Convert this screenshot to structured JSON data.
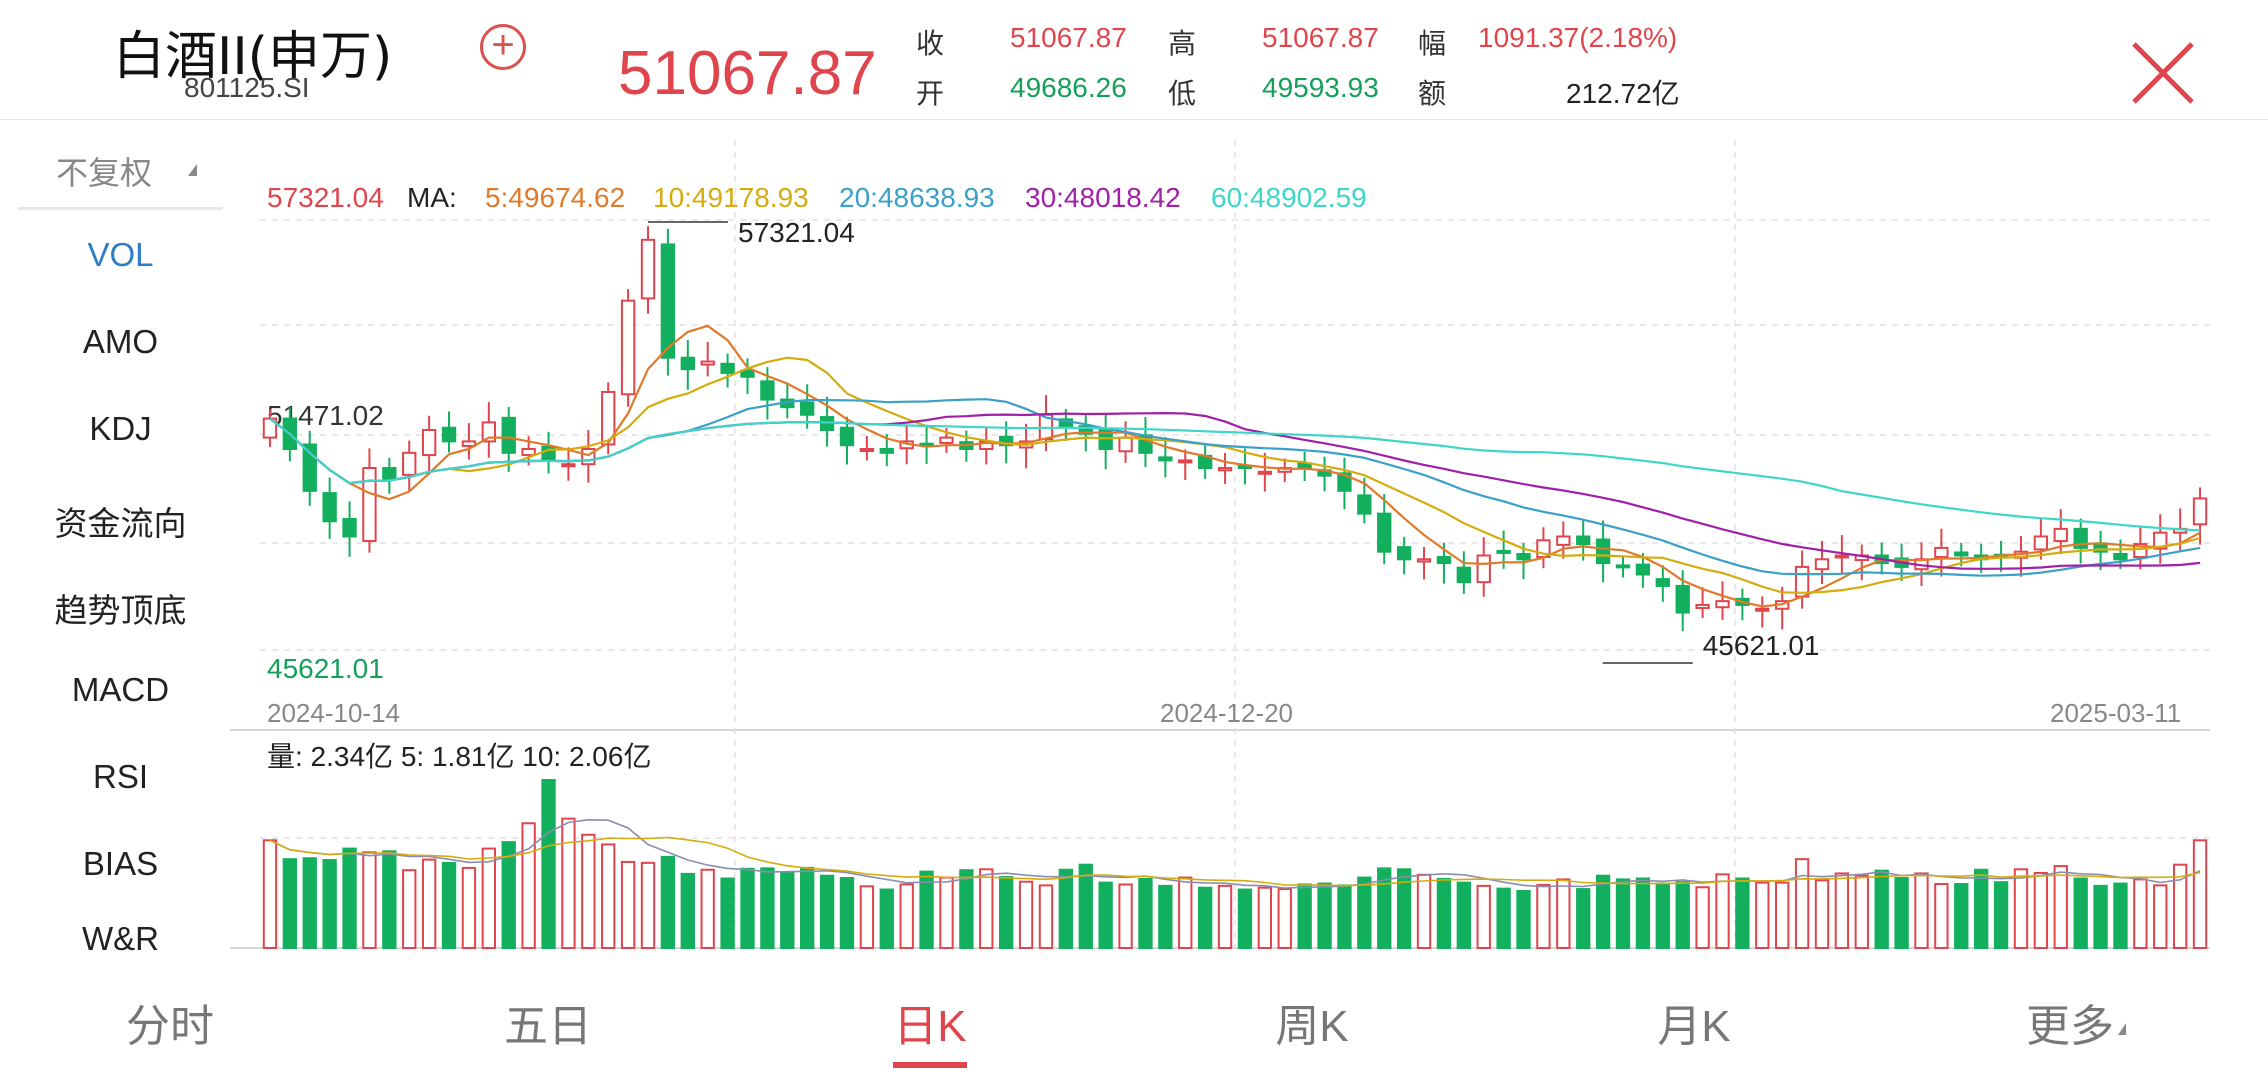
{
  "header": {
    "title": "白酒II(申万)",
    "code": "801125.SI",
    "price": "51067.87",
    "quotes": [
      {
        "label": "收",
        "value": "51067.87",
        "color": "red"
      },
      {
        "label": "高",
        "value": "51067.87",
        "color": "red"
      },
      {
        "label": "幅",
        "value": "1091.37(2.18%)",
        "color": "red"
      },
      {
        "label": "开",
        "value": "49686.26",
        "color": "green"
      },
      {
        "label": "低",
        "value": "49593.93",
        "color": "green"
      },
      {
        "label": "额",
        "value": "212.72亿",
        "color": "dark"
      }
    ]
  },
  "menu": {
    "rights": "不复权",
    "items": [
      "VOL",
      "AMO",
      "KDJ",
      "资金流向",
      "趋势顶底",
      "MACD",
      "RSI",
      "BIAS",
      "W&R"
    ]
  },
  "chart": {
    "ma_legend": {
      "value": "57321.04",
      "label": "MA:",
      "items": [
        {
          "text": "5:49674.62",
          "color": "#e07a2a"
        },
        {
          "text": "10:49178.93",
          "color": "#d4ac0d"
        },
        {
          "text": "20:48638.93",
          "color": "#3aa0c8"
        },
        {
          "text": "30:48018.42",
          "color": "#a020a8"
        },
        {
          "text": "60:48902.59",
          "color": "#3dd6c8"
        }
      ]
    },
    "y_max_label": "57321.04",
    "y_min_label": "45621.01",
    "mid_label": "51471.02",
    "high_annot": "57321.04",
    "low_annot": "45621.01",
    "x_labels": [
      "2024-10-14",
      "2024-12-20",
      "2025-03-11"
    ],
    "vol_legend": "量: 2.34亿  5: 1.81亿  10: 2.06亿",
    "colors": {
      "up": "#e0454d",
      "down": "#12b05e"
    }
  },
  "chart_data": {
    "type": "candlestick",
    "y_range": [
      45621.01,
      57321.04
    ],
    "closes": [
      52100,
      51300,
      50200,
      49400,
      49000,
      50800,
      50500,
      51200,
      51800,
      51500,
      51500,
      52000,
      51200,
      51300,
      51000,
      50900,
      51300,
      52800,
      55200,
      56800,
      53700,
      53400,
      53600,
      53300,
      53200,
      52600,
      52400,
      52200,
      51800,
      51400,
      51300,
      51200,
      51500,
      51400,
      51600,
      51300,
      51500,
      51400,
      51500,
      52200,
      51900,
      51700,
      51300,
      51600,
      51200,
      51000,
      51000,
      50800,
      50800,
      50800,
      50700,
      50800,
      50800,
      50600,
      50200,
      49600,
      48600,
      48400,
      48400,
      48300,
      47800,
      48500,
      48600,
      48400,
      48900,
      49000,
      48800,
      48300,
      48200,
      48000,
      47700,
      47000,
      47200,
      47300,
      47200,
      47100,
      47300,
      48200,
      48400,
      48500,
      48500,
      48300,
      48200,
      48400,
      48700,
      48500,
      48400,
      48500,
      48600,
      49000,
      49200,
      48700,
      48600,
      48400,
      48800,
      49100,
      49200,
      50000
    ],
    "volumes": [
      2.34,
      1.93,
      1.95,
      1.91,
      2.16,
      2.08,
      2.1,
      1.69,
      1.92,
      1.85,
      1.74,
      2.16,
      2.3,
      2.71,
      3.65,
      2.81,
      2.46,
      2.25,
      1.87,
      1.85,
      1.98,
      1.61,
      1.7,
      1.51,
      1.72,
      1.73,
      1.63,
      1.74,
      1.57,
      1.52,
      1.34,
      1.27,
      1.38,
      1.66,
      1.53,
      1.69,
      1.71,
      1.54,
      1.44,
      1.36,
      1.7,
      1.81,
      1.42,
      1.38,
      1.5,
      1.35,
      1.53,
      1.31,
      1.35,
      1.27,
      1.31,
      1.28,
      1.38,
      1.4,
      1.36,
      1.53,
      1.73,
      1.71,
      1.59,
      1.5,
      1.42,
      1.35,
      1.29,
      1.24,
      1.37,
      1.49,
      1.28,
      1.57,
      1.49,
      1.51,
      1.4,
      1.43,
      1.32,
      1.6,
      1.51,
      1.42,
      1.42,
      1.93,
      1.47,
      1.62,
      1.57,
      1.68,
      1.52,
      1.62,
      1.39,
      1.39,
      1.7,
      1.43,
      1.71,
      1.63,
      1.78,
      1.51,
      1.35,
      1.4,
      1.49,
      1.36,
      1.81,
      2.34
    ]
  }
}
